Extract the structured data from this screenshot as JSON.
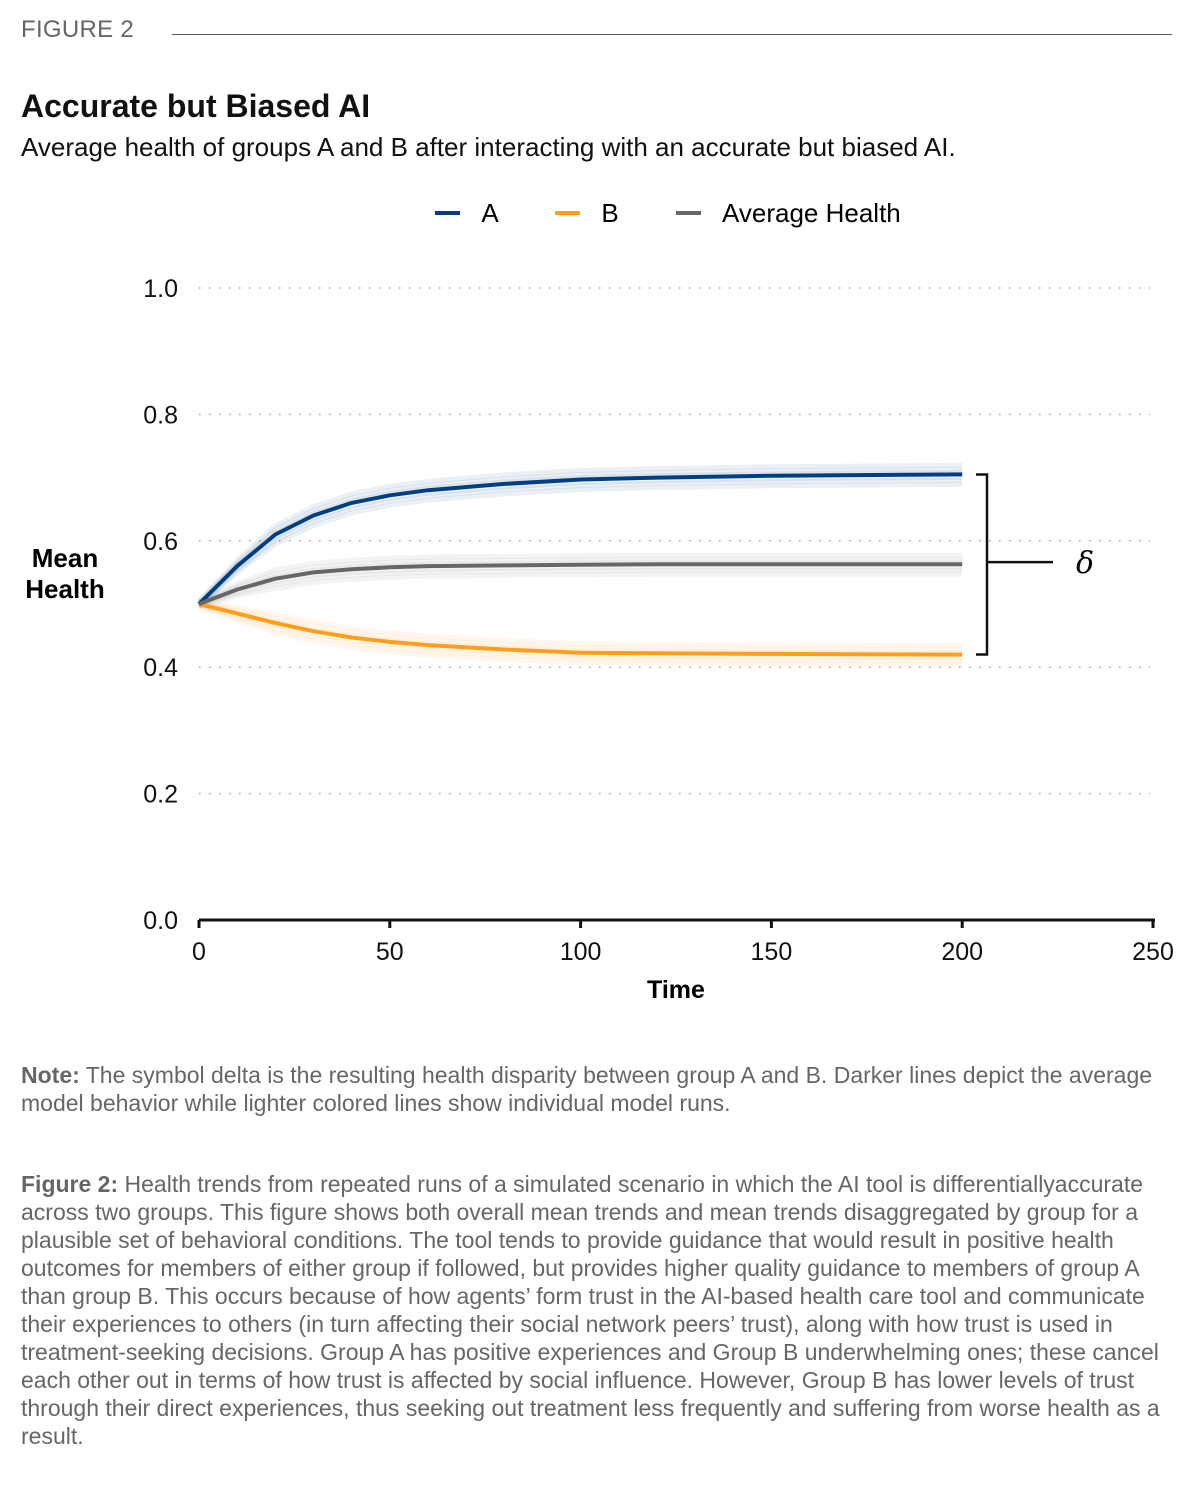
{
  "figure_label": "FIGURE 2",
  "title": "Accurate but Biased AI",
  "subtitle": "Average health of groups A and B after interacting with an accurate but biased AI.",
  "note": {
    "label": "Note:",
    "text": " The symbol delta is the resulting health disparity between group A and B. Darker lines depict the average model behavior while lighter colored lines show individual model runs."
  },
  "caption": {
    "label": "Figure 2:",
    "text": " Health trends from repeated runs of a simulated scenario in which the AI tool is differentiallyaccurate across two groups. This figure shows both overall mean trends and mean trends disaggregated by group for a plausible set of behavioral conditions. The tool tends to provide guidance that would result in positive health outcomes for members of either group if followed, but provides higher quality guidance to members of group A than group B. This occurs because of how agents’ form trust in the AI-based health care tool and communicate their experiences to others (in turn affecting their social network peers’ trust), along with how trust is used in treatment-seeking decisions. Group A has positive experiences and Group B underwhelming ones; these cancel each other out in terms of how trust is affected by social influence. However, Group B has lower levels of trust through their direct experiences, thus seeking out treatment less frequently and suffering from worse health as a result."
  },
  "chart_data": {
    "type": "line",
    "title": "Accurate but Biased AI",
    "xlabel": "Time",
    "ylabel": "Mean Health",
    "xlim": [
      0,
      250
    ],
    "ylim": [
      0,
      1.0
    ],
    "xticks": [
      "0",
      "50",
      "100",
      "150",
      "200",
      "250"
    ],
    "yticks": [
      "0.0",
      "0.2",
      "0.4",
      "0.6",
      "0.8",
      "1.0"
    ],
    "grid": "horizontal dotted",
    "legend_position": "top-center",
    "x": [
      0,
      10,
      20,
      30,
      40,
      50,
      60,
      80,
      100,
      120,
      150,
      200
    ],
    "series": [
      {
        "name": "A",
        "color": "#003f7f",
        "values": [
          0.5,
          0.56,
          0.61,
          0.64,
          0.66,
          0.672,
          0.68,
          0.69,
          0.697,
          0.7,
          0.703,
          0.705
        ]
      },
      {
        "name": "B",
        "color": "#ff9e1b",
        "values": [
          0.5,
          0.485,
          0.47,
          0.457,
          0.447,
          0.44,
          0.435,
          0.428,
          0.423,
          0.422,
          0.421,
          0.42
        ]
      },
      {
        "name": "Average Health",
        "color": "#666666",
        "values": [
          0.5,
          0.523,
          0.54,
          0.55,
          0.555,
          0.558,
          0.56,
          0.561,
          0.562,
          0.563,
          0.563,
          0.563
        ]
      }
    ],
    "annotation": "δ"
  }
}
